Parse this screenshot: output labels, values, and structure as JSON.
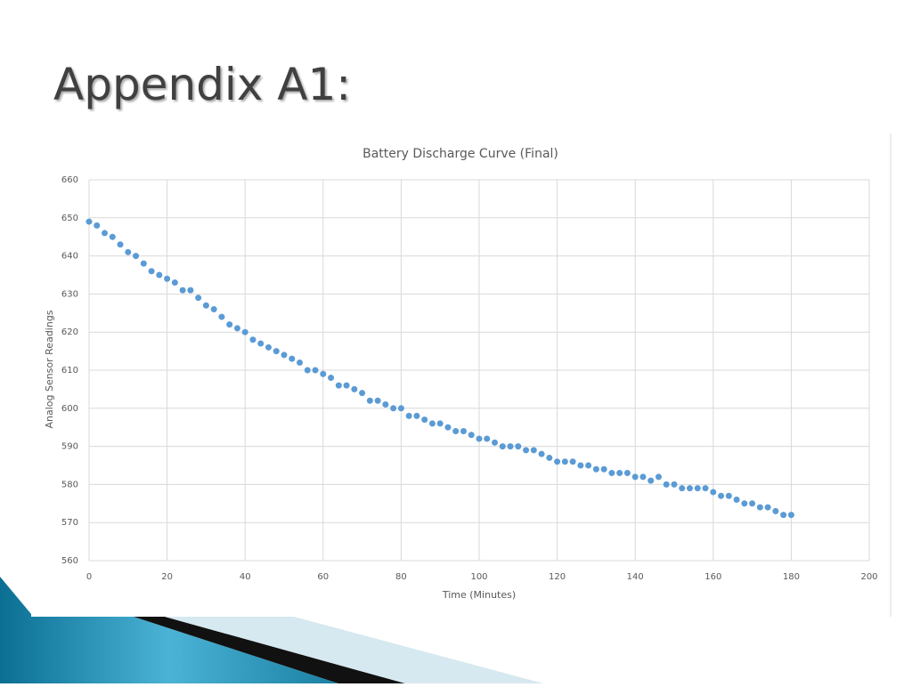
{
  "slide_title": "Appendix A1:",
  "chart_data": {
    "type": "scatter",
    "title": "Battery Discharge Curve (Final)",
    "x_label": "Time (Minutes)",
    "y_label": "Analog Sensor Readings",
    "color": "#5b9bd5",
    "grid": true,
    "xlim": [
      0,
      200
    ],
    "xticks": [
      0,
      20,
      40,
      60,
      80,
      100,
      120,
      140,
      160,
      180,
      200
    ],
    "ylim": [
      560,
      660
    ],
    "yticks": [
      560,
      570,
      580,
      590,
      600,
      610,
      620,
      630,
      640,
      650,
      660
    ],
    "x": [
      0,
      2,
      4,
      6,
      8,
      10,
      12,
      14,
      16,
      18,
      20,
      22,
      24,
      26,
      28,
      30,
      32,
      34,
      36,
      38,
      40,
      42,
      44,
      46,
      48,
      50,
      52,
      54,
      56,
      58,
      60,
      62,
      64,
      66,
      68,
      70,
      72,
      74,
      76,
      78,
      80,
      82,
      84,
      86,
      88,
      90,
      92,
      94,
      96,
      98,
      100,
      102,
      104,
      106,
      108,
      110,
      112,
      114,
      116,
      118,
      120,
      122,
      124,
      126,
      128,
      130,
      132,
      134,
      136,
      138,
      140,
      142,
      144,
      146,
      148,
      150,
      152,
      154,
      156,
      158,
      160,
      162,
      164,
      166,
      168,
      170,
      172,
      174,
      176,
      178,
      180
    ],
    "values": [
      649,
      648,
      646,
      645,
      643,
      641,
      640,
      638,
      636,
      635,
      634,
      633,
      631,
      631,
      629,
      627,
      626,
      624,
      622,
      621,
      620,
      618,
      617,
      616,
      615,
      614,
      613,
      612,
      610,
      610,
      609,
      608,
      606,
      606,
      605,
      604,
      602,
      602,
      601,
      600,
      600,
      598,
      598,
      597,
      596,
      596,
      595,
      594,
      594,
      593,
      592,
      592,
      591,
      590,
      590,
      590,
      589,
      589,
      588,
      587,
      586,
      586,
      586,
      585,
      585,
      584,
      584,
      583,
      583,
      583,
      582,
      582,
      581,
      582,
      580,
      580,
      579,
      579,
      579,
      579,
      578,
      577,
      577,
      576,
      575,
      575,
      574,
      574,
      573,
      572,
      572
    ]
  }
}
